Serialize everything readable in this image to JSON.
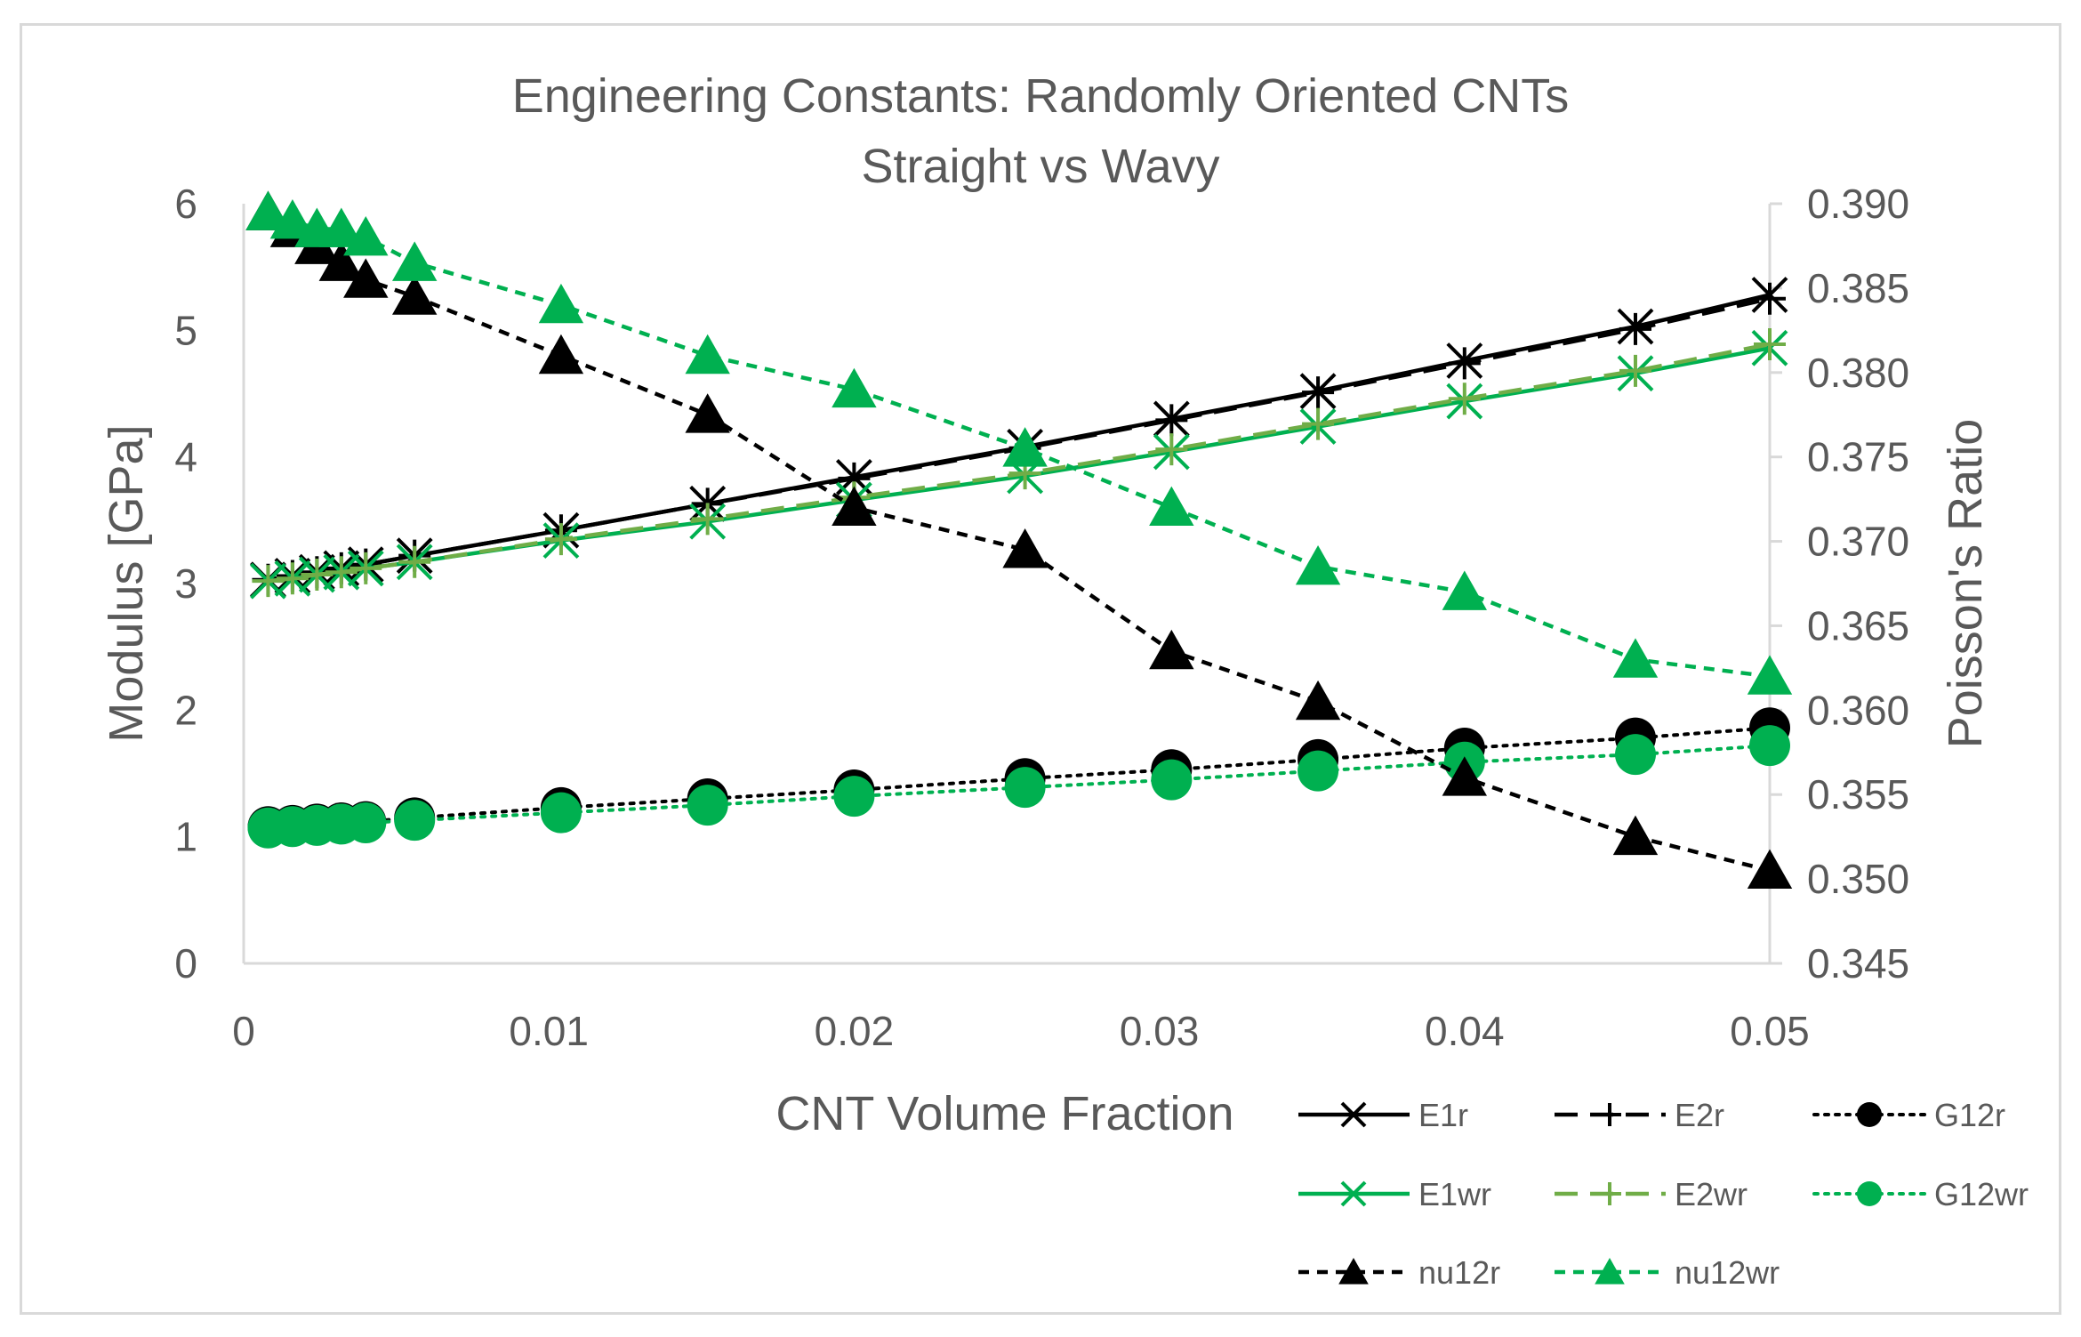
{
  "chart_data": {
    "type": "line",
    "title": "Engineering Constants: Randomly Oriented CNTs",
    "subtitle": "Straight vs Wavy",
    "xlabel": "CNT Volume Fraction",
    "ylabel": "Modulus [GPa]",
    "y2label": "Poisson's Ratio",
    "xlim": [
      0,
      0.05
    ],
    "ylim": [
      0,
      6
    ],
    "y2lim": [
      0.345,
      0.39
    ],
    "x_ticks": [
      "0",
      "0.01",
      "0.02",
      "0.03",
      "0.04",
      "0.05"
    ],
    "y_ticks": [
      "0",
      "1",
      "2",
      "3",
      "4",
      "5",
      "6"
    ],
    "y2_ticks": [
      "0.345",
      "0.350",
      "0.355",
      "0.360",
      "0.365",
      "0.370",
      "0.375",
      "0.380",
      "0.385",
      "0.390"
    ],
    "legend_position": "bottom-right",
    "x": [
      0.0008,
      0.0016,
      0.0024,
      0.0032,
      0.004,
      0.0056,
      0.0104,
      0.0152,
      0.02,
      0.0256,
      0.0304,
      0.0352,
      0.04,
      0.0456,
      0.05
    ],
    "series": [
      {
        "name": "E1r",
        "axis": "left",
        "color": "#000000",
        "dash": "solid",
        "marker": "x",
        "values": [
          3.03,
          3.06,
          3.09,
          3.12,
          3.15,
          3.22,
          3.42,
          3.63,
          3.84,
          4.08,
          4.3,
          4.52,
          4.76,
          5.03,
          5.28
        ]
      },
      {
        "name": "E2r",
        "axis": "left",
        "color": "#000000",
        "dash": "longdash",
        "marker": "plus",
        "values": [
          3.03,
          3.06,
          3.09,
          3.12,
          3.15,
          3.22,
          3.42,
          3.63,
          3.83,
          4.07,
          4.29,
          4.51,
          4.74,
          5.01,
          5.25
        ]
      },
      {
        "name": "G12r",
        "axis": "left",
        "color": "#000000",
        "dash": "dot",
        "marker": "circle",
        "values": [
          1.08,
          1.09,
          1.1,
          1.11,
          1.12,
          1.15,
          1.23,
          1.3,
          1.37,
          1.46,
          1.53,
          1.61,
          1.7,
          1.78,
          1.86
        ]
      },
      {
        "name": "E1wr",
        "axis": "left",
        "color": "#00b050",
        "dash": "solid",
        "marker": "x",
        "values": [
          3.02,
          3.04,
          3.07,
          3.09,
          3.12,
          3.17,
          3.34,
          3.49,
          3.66,
          3.85,
          4.04,
          4.24,
          4.44,
          4.66,
          4.86
        ]
      },
      {
        "name": "E2wr",
        "axis": "left",
        "color": "#70ad47",
        "dash": "longdash",
        "marker": "plus",
        "values": [
          3.02,
          3.04,
          3.07,
          3.09,
          3.12,
          3.17,
          3.35,
          3.51,
          3.68,
          3.87,
          4.06,
          4.26,
          4.46,
          4.68,
          4.89
        ]
      },
      {
        "name": "G12wr",
        "axis": "left",
        "color": "#00b050",
        "dash": "dot",
        "marker": "circle",
        "values": [
          1.07,
          1.08,
          1.09,
          1.1,
          1.11,
          1.13,
          1.19,
          1.25,
          1.32,
          1.39,
          1.45,
          1.52,
          1.59,
          1.65,
          1.72
        ]
      },
      {
        "name": "nu12r",
        "axis": "right",
        "color": "#000000",
        "dash": "dash",
        "marker": "triangle",
        "values": [
          0.3895,
          0.3885,
          0.3875,
          0.3865,
          0.3855,
          0.3845,
          0.381,
          0.3775,
          0.372,
          0.3695,
          0.3635,
          0.3605,
          0.356,
          0.3525,
          0.3505
        ]
      },
      {
        "name": "nu12wr",
        "axis": "right",
        "color": "#00b050",
        "dash": "dash",
        "marker": "triangle",
        "values": [
          0.3895,
          0.389,
          0.3885,
          0.3885,
          0.388,
          0.3865,
          0.384,
          0.381,
          0.379,
          0.3755,
          0.372,
          0.3685,
          0.367,
          0.363,
          0.362
        ]
      }
    ]
  }
}
